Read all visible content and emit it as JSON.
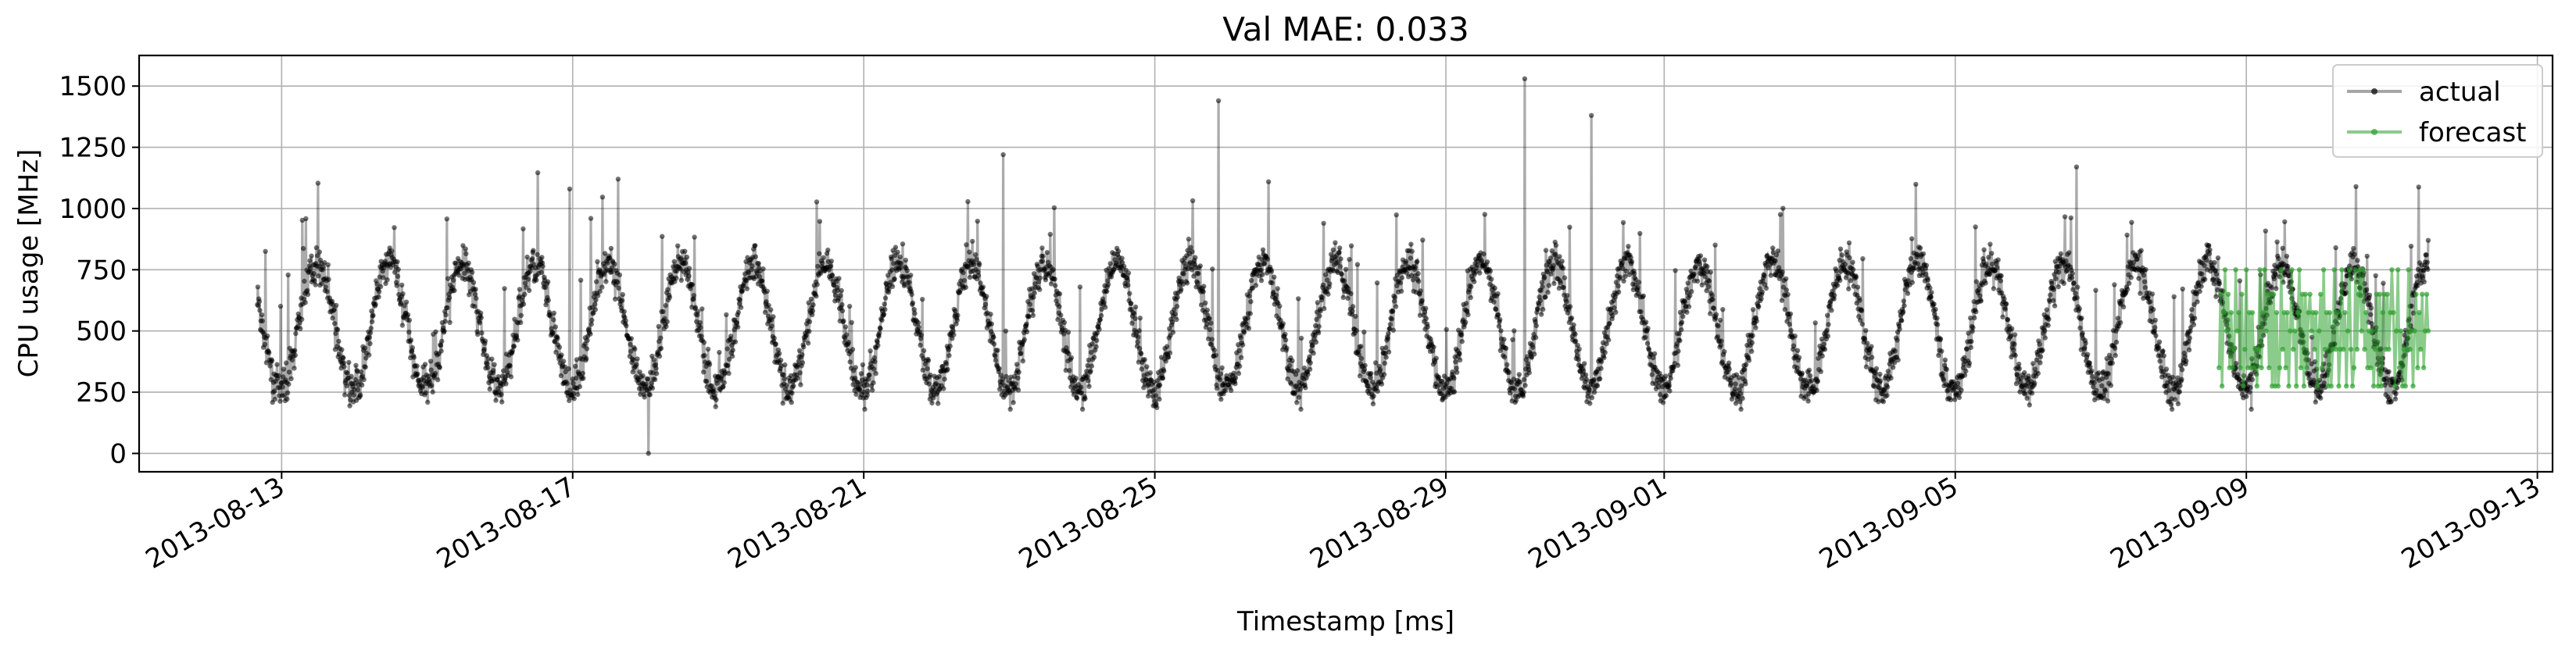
{
  "chart_data": {
    "type": "line",
    "title": "Val MAE: 0.033",
    "xlabel": "Timestamp [ms]",
    "ylabel": "CPU usage [MHz]",
    "x_type": "datetime",
    "xlim": [
      "2013-08-11T01:00",
      "2013-09-13T05:00"
    ],
    "ylim": [
      -75,
      1625
    ],
    "xticks": [
      "2013-08-13",
      "2013-08-17",
      "2013-08-21",
      "2013-08-25",
      "2013-08-29",
      "2013-09-01",
      "2013-09-05",
      "2013-09-09",
      "2013-09-13"
    ],
    "yticks": [
      0,
      250,
      500,
      750,
      1000,
      1250,
      1500
    ],
    "grid": true,
    "legend": {
      "position": "top-right"
    },
    "series": [
      {
        "name": "actual",
        "color": "#000000",
        "style": "line with dots, semi-transparent",
        "x_range": [
          "2013-08-12T16:00",
          "2013-09-11T12:00"
        ],
        "interval_minutes": 10,
        "period": "daily",
        "typical_trough": 260,
        "typical_peak": 780,
        "min_value": 0,
        "spikes": [
          {
            "x": "2013-08-18T01:00",
            "y": 0
          },
          {
            "x": "2013-08-25T21:00",
            "y": 1440
          },
          {
            "x": "2013-08-30T02:00",
            "y": 1530
          },
          {
            "x": "2013-08-31T00:00",
            "y": 1380
          },
          {
            "x": "2013-08-22T22:00",
            "y": 1220
          },
          {
            "x": "2013-09-06T16:00",
            "y": 1170
          },
          {
            "x": "2013-08-16T23:00",
            "y": 1080
          },
          {
            "x": "2013-08-17T15:00",
            "y": 1120
          }
        ]
      },
      {
        "name": "forecast",
        "color": "#2ca02c",
        "style": "line with dots, semi-transparent",
        "x_range": [
          "2013-09-08T15:00",
          "2013-09-11T12:00"
        ],
        "levels": [
          275,
          350,
          425,
          500,
          575,
          650,
          750
        ]
      }
    ]
  }
}
